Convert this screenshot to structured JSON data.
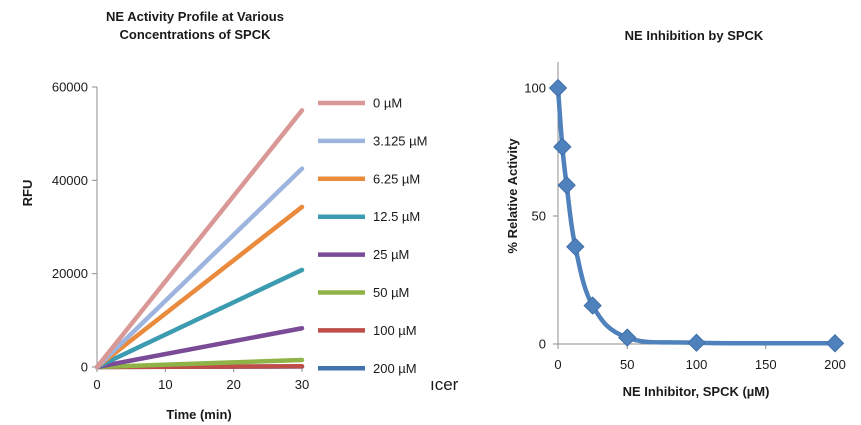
{
  "stray_text": "ıcer",
  "chart_data": [
    {
      "type": "line",
      "title_lines": [
        "NE Activity Profile at Various",
        "Concentrations of SPCK"
      ],
      "xlabel": "Time (min)",
      "ylabel": "RFU",
      "xlim": [
        0,
        30
      ],
      "ylim": [
        0,
        60000
      ],
      "x_ticks": [
        "0",
        "10",
        "20",
        "30"
      ],
      "y_ticks": [
        "0",
        "20000",
        "40000",
        "60000"
      ],
      "x": [
        0,
        30
      ],
      "grid": false,
      "legend_position": "right",
      "series": [
        {
          "name": "0 µM",
          "color": "#d99795",
          "values": [
            0,
            55000
          ]
        },
        {
          "name": "3.125 µM",
          "color": "#9db4df",
          "values": [
            0,
            42500
          ]
        },
        {
          "name": "6.25 µM",
          "color": "#ea8a3d",
          "values": [
            0,
            34300
          ]
        },
        {
          "name": "12.5 µM",
          "color": "#3b9bb0",
          "values": [
            0,
            20800
          ]
        },
        {
          "name": "25 µM",
          "color": "#7a4b96",
          "values": [
            0,
            8300
          ]
        },
        {
          "name": "50 µM",
          "color": "#8fb346",
          "values": [
            0,
            1500
          ]
        },
        {
          "name": "100 µM",
          "color": "#bf4d48",
          "values": [
            0,
            150
          ]
        },
        {
          "name": "200 µM",
          "color": "#4472aa",
          "values": [
            0,
            100
          ]
        }
      ]
    },
    {
      "type": "line",
      "title": "NE Inhibition by SPCK",
      "xlabel": "NE Inhibitor, SPCK (µM)",
      "ylabel": "% Relative Activity",
      "xlim": [
        0,
        200
      ],
      "ylim": [
        0,
        110
      ],
      "x_ticks": [
        "0",
        "50",
        "100",
        "150",
        "200"
      ],
      "y_ticks": [
        "0",
        "50",
        "100"
      ],
      "grid": false,
      "line_color": "#4f81bd",
      "marker": "diamond",
      "x": [
        0,
        3.125,
        6.25,
        12.5,
        25,
        50,
        100,
        200
      ],
      "values": [
        100,
        77,
        62,
        38,
        15,
        2.5,
        0.5,
        0.3
      ]
    }
  ]
}
